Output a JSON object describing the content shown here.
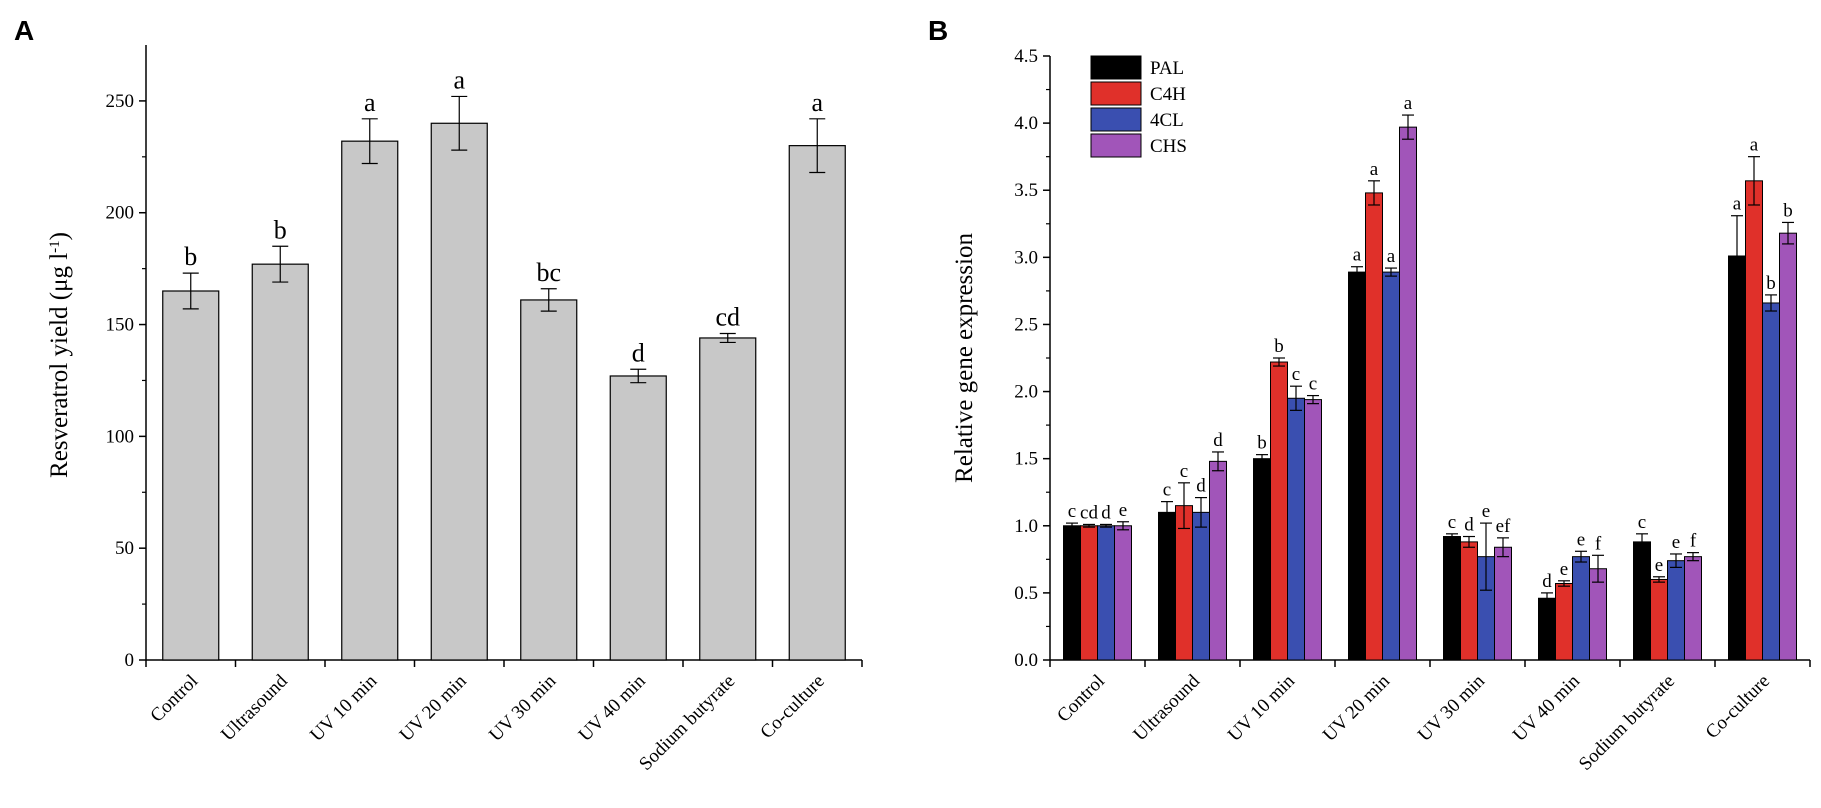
{
  "colors": {
    "gray_bar": "#c8c8c8",
    "PAL": "#000000",
    "C4H": "#e0302a",
    "4CL": "#3a4fb0",
    "CHS": "#a155b9"
  },
  "chart_data": [
    {
      "panel": "A",
      "type": "bar",
      "title": "",
      "xlabel": "",
      "ylabel": "Resveratrol yield (μg l",
      "ylabel_superscript": "-1",
      "ylabel_close": ")",
      "ylim": [
        0,
        275
      ],
      "yticks": [
        0,
        50,
        100,
        150,
        200,
        250
      ],
      "ytick_labels": [
        "0",
        "50",
        "100",
        "150",
        "200",
        "250"
      ],
      "categories": [
        "Control",
        "Ultrasound",
        "UV 10 min",
        "UV 20 min",
        "UV 30 min",
        "UV 40 min",
        "Sodium butyrate",
        "Co-culture"
      ],
      "values": [
        165,
        177,
        232,
        240,
        161,
        127,
        144,
        230
      ],
      "errors": [
        8,
        8,
        10,
        12,
        5,
        3,
        2,
        12
      ],
      "significance": [
        "b",
        "b",
        "a",
        "a",
        "bc",
        "d",
        "cd",
        "a"
      ]
    },
    {
      "panel": "B",
      "type": "bar",
      "title": "",
      "xlabel": "",
      "ylabel": "Relative gene expression",
      "ylim": [
        0,
        4.5
      ],
      "yticks": [
        0,
        0.5,
        1.0,
        1.5,
        2.0,
        2.5,
        3.0,
        3.5,
        4.0,
        4.5
      ],
      "ytick_labels": [
        "0.0",
        "0.5",
        "1.0",
        "1.5",
        "2.0",
        "2.5",
        "3.0",
        "3.5",
        "4.0",
        "4.5"
      ],
      "legend_position": "top-left",
      "categories": [
        "Control",
        "Ultrasound",
        "UV 10 min",
        "UV 20 min",
        "UV 30 min",
        "UV 40 min",
        "Sodium butyrate",
        "Co-culture"
      ],
      "series": [
        {
          "name": "PAL",
          "values": [
            1.0,
            1.1,
            1.5,
            2.89,
            0.92,
            0.46,
            0.88,
            3.01
          ],
          "errors": [
            0.02,
            0.08,
            0.03,
            0.04,
            0.02,
            0.04,
            0.06,
            0.3
          ],
          "significance": [
            "c",
            "c",
            "b",
            "a",
            "c",
            "d",
            "c",
            "a"
          ]
        },
        {
          "name": "C4H",
          "values": [
            1.0,
            1.15,
            2.22,
            3.48,
            0.88,
            0.57,
            0.6,
            3.57
          ],
          "errors": [
            0.01,
            0.17,
            0.03,
            0.09,
            0.04,
            0.02,
            0.02,
            0.18
          ],
          "significance": [
            "cd",
            "c",
            "b",
            "a",
            "d",
            "e",
            "e",
            "a"
          ]
        },
        {
          "name": "4CL",
          "values": [
            1.0,
            1.1,
            1.95,
            2.89,
            0.77,
            0.77,
            0.74,
            2.66
          ],
          "errors": [
            0.01,
            0.11,
            0.09,
            0.03,
            0.25,
            0.04,
            0.05,
            0.06
          ],
          "significance": [
            "d",
            "d",
            "c",
            "a",
            "e",
            "e",
            "e",
            "b"
          ]
        },
        {
          "name": "CHS",
          "values": [
            1.0,
            1.48,
            1.94,
            3.97,
            0.84,
            0.68,
            0.77,
            3.18
          ],
          "errors": [
            0.03,
            0.07,
            0.03,
            0.09,
            0.07,
            0.1,
            0.03,
            0.08
          ],
          "significance": [
            "e",
            "d",
            "c",
            "a",
            "ef",
            "f",
            "f",
            "b"
          ]
        }
      ]
    }
  ]
}
